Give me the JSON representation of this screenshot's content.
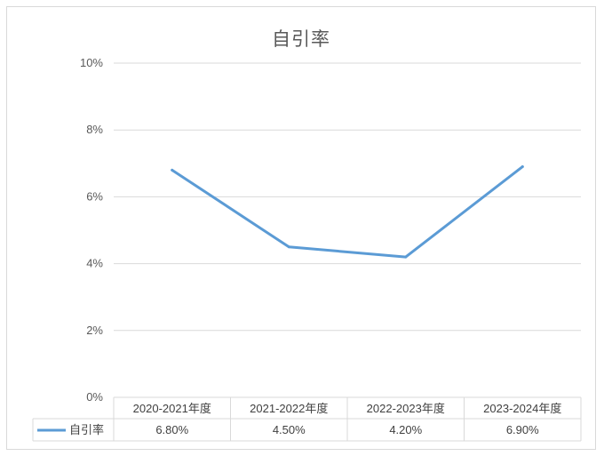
{
  "chart_data": {
    "type": "line",
    "title": "自引率",
    "categories": [
      "2020-2021年度",
      "2021-2022年度",
      "2022-2023年度",
      "2023-2024年度"
    ],
    "series": [
      {
        "name": "自引率",
        "values": [
          6.8,
          4.5,
          4.2,
          6.9
        ],
        "labels": [
          "6.80%",
          "4.50%",
          "4.20%",
          "6.90%"
        ],
        "color": "#5b9bd5"
      }
    ],
    "ylim": [
      0,
      10
    ],
    "yticks": [
      0,
      2,
      4,
      6,
      8,
      10
    ],
    "ytick_labels": [
      "0%",
      "2%",
      "4%",
      "6%",
      "8%",
      "10%"
    ],
    "grid": true,
    "legend": "data-table"
  }
}
